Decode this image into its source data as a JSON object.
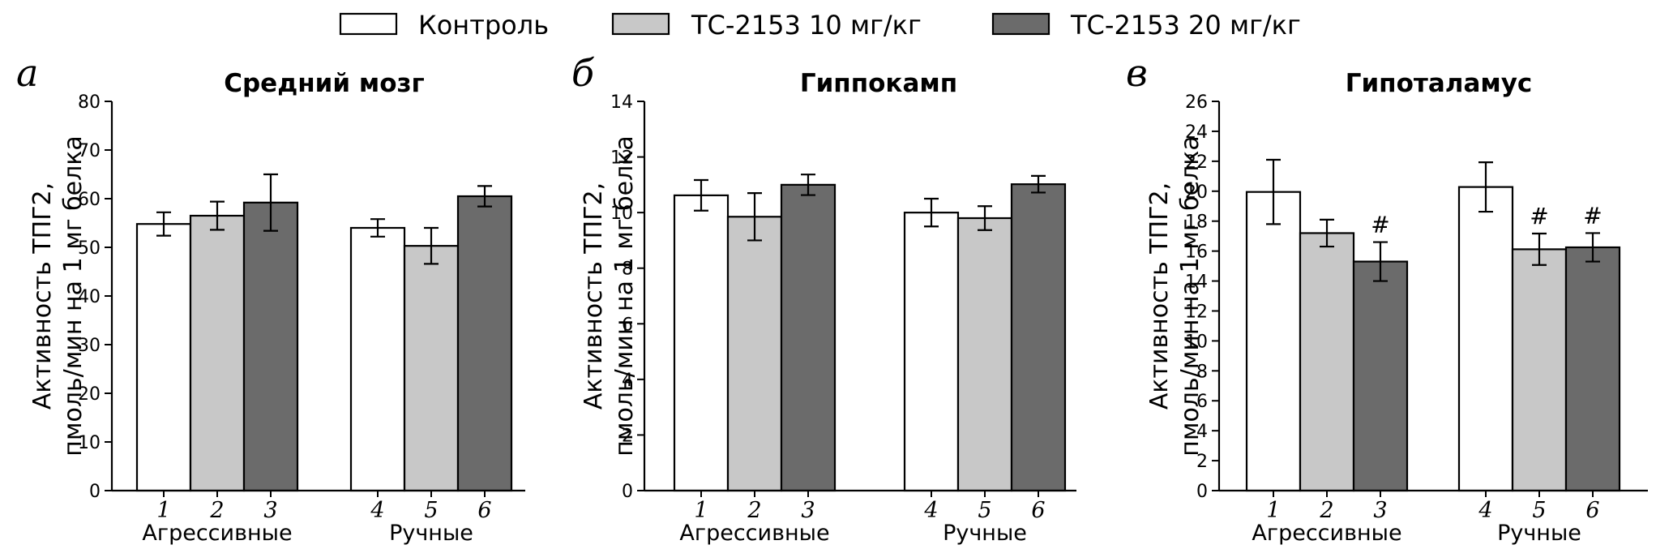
{
  "legend": [
    {
      "label": "Контроль",
      "color": "#ffffff"
    },
    {
      "label": "ТС-2153 10 мг/кг",
      "color": "#c8c8c8"
    },
    {
      "label": "ТС-2153 20 мг/кг",
      "color": "#6b6b6b"
    }
  ],
  "chart_data": [
    {
      "type": "bar",
      "panel_letter": "а",
      "title": "Средний мозг",
      "ylabel_lines": [
        "Активность ТПГ2,",
        "пмоль/мин на 1 мг белка"
      ],
      "groups": [
        "Агрессивные",
        "Ручные"
      ],
      "bar_numbers": [
        "1",
        "2",
        "3",
        "4",
        "5",
        "6"
      ],
      "ylim": [
        0,
        80
      ],
      "yticks": [
        0,
        10,
        20,
        30,
        40,
        50,
        60,
        70,
        80
      ],
      "series": [
        {
          "name": "Контроль",
          "values": [
            54.8,
            54.0
          ],
          "errors": [
            2.4,
            1.8
          ]
        },
        {
          "name": "ТС-2153 10 мг/кг",
          "values": [
            56.5,
            50.3
          ],
          "errors": [
            2.9,
            3.7
          ]
        },
        {
          "name": "ТС-2153 20 мг/кг",
          "values": [
            59.2,
            60.5
          ],
          "errors": [
            5.8,
            2.1
          ]
        }
      ],
      "annotations": [
        [
          "",
          "",
          ""
        ],
        [
          "",
          "",
          ""
        ]
      ]
    },
    {
      "type": "bar",
      "panel_letter": "б",
      "title": "Гиппокамп",
      "ylabel_lines": [
        "Активность ТПГ2,",
        "пмоль/мин на 1 мг белка"
      ],
      "groups": [
        "Агрессивные",
        "Ручные"
      ],
      "bar_numbers": [
        "1",
        "2",
        "3",
        "4",
        "5",
        "6"
      ],
      "ylim": [
        0,
        14
      ],
      "yticks": [
        0,
        2,
        4,
        6,
        8,
        10,
        12,
        14
      ],
      "series": [
        {
          "name": "Контроль",
          "values": [
            10.62,
            10.0
          ],
          "errors": [
            0.55,
            0.5
          ]
        },
        {
          "name": "ТС-2153 10 мг/кг",
          "values": [
            9.85,
            9.8
          ],
          "errors": [
            0.85,
            0.43
          ]
        },
        {
          "name": "ТС-2153 20 мг/кг",
          "values": [
            11.0,
            11.02
          ],
          "errors": [
            0.37,
            0.3
          ]
        }
      ],
      "annotations": [
        [
          "",
          "",
          ""
        ],
        [
          "",
          "",
          ""
        ]
      ]
    },
    {
      "type": "bar",
      "panel_letter": "в",
      "title": "Гипоталамус",
      "ylabel_lines": [
        "Активность ТПГ2,",
        "пмоль/мин на 1 мг белка"
      ],
      "groups": [
        "Агрессивные",
        "Ручные"
      ],
      "bar_numbers": [
        "1",
        "2",
        "3",
        "4",
        "5",
        "6"
      ],
      "ylim": [
        0,
        26
      ],
      "yticks": [
        0,
        2,
        4,
        6,
        8,
        10,
        12,
        14,
        16,
        18,
        20,
        22,
        24,
        26
      ],
      "series": [
        {
          "name": "Контроль",
          "values": [
            19.95,
            20.28
          ],
          "errors": [
            2.15,
            1.65
          ]
        },
        {
          "name": "ТС-2153 10 мг/кг",
          "values": [
            17.2,
            16.12
          ],
          "errors": [
            0.9,
            1.05
          ]
        },
        {
          "name": "ТС-2153 20 мг/кг",
          "values": [
            15.3,
            16.25
          ],
          "errors": [
            1.3,
            0.95
          ]
        }
      ],
      "annotations": [
        [
          "",
          "",
          "#"
        ],
        [
          "",
          "#",
          "#"
        ]
      ]
    }
  ]
}
